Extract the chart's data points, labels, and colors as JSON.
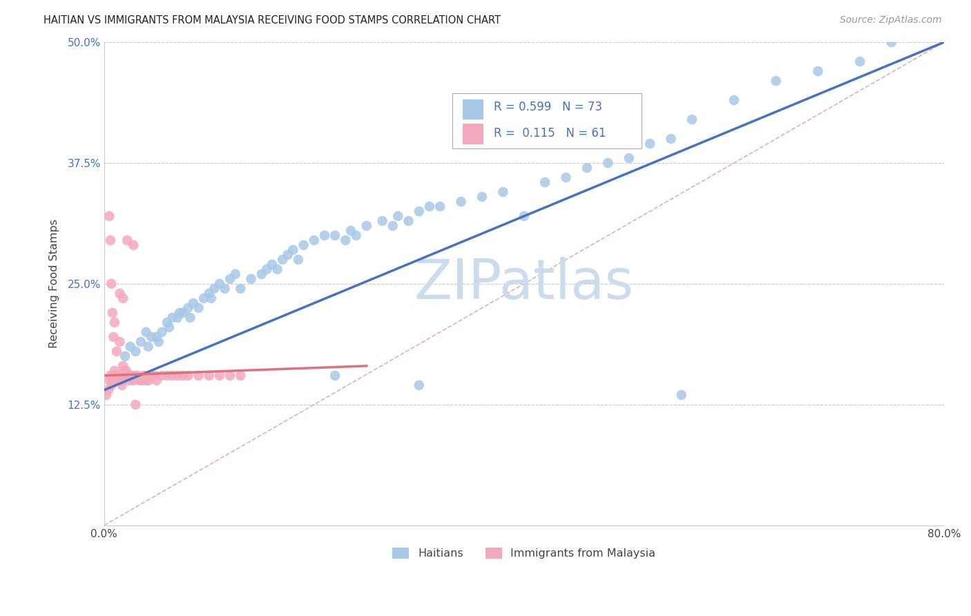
{
  "title": "HAITIAN VS IMMIGRANTS FROM MALAYSIA RECEIVING FOOD STAMPS CORRELATION CHART",
  "source": "Source: ZipAtlas.com",
  "ylabel": "Receiving Food Stamps",
  "xlim": [
    0.0,
    0.8
  ],
  "ylim": [
    0.0,
    0.5
  ],
  "r_haitian": 0.599,
  "n_haitian": 73,
  "r_malaysia": 0.115,
  "n_malaysia": 61,
  "color_haitian": "#a8c8e8",
  "color_malaysia": "#f4a8bc",
  "line_color_haitian": "#4472c4",
  "line_color_malaysia": "#e07080",
  "ref_line_color": "#e0a0a8",
  "legend_text_color": "#4472c4",
  "watermark_color": "#ccdcec",
  "background_color": "#ffffff",
  "ytick_color": "#4472c4",
  "haitian_x": [
    0.02,
    0.025,
    0.03,
    0.035,
    0.04,
    0.042,
    0.045,
    0.05,
    0.052,
    0.055,
    0.06,
    0.062,
    0.065,
    0.07,
    0.072,
    0.075,
    0.08,
    0.082,
    0.085,
    0.09,
    0.095,
    0.1,
    0.102,
    0.105,
    0.11,
    0.115,
    0.12,
    0.125,
    0.13,
    0.14,
    0.15,
    0.155,
    0.16,
    0.165,
    0.17,
    0.175,
    0.18,
    0.185,
    0.19,
    0.2,
    0.21,
    0.22,
    0.23,
    0.235,
    0.24,
    0.25,
    0.265,
    0.275,
    0.28,
    0.29,
    0.3,
    0.31,
    0.32,
    0.34,
    0.36,
    0.38,
    0.4,
    0.42,
    0.44,
    0.46,
    0.48,
    0.5,
    0.52,
    0.54,
    0.56,
    0.6,
    0.64,
    0.68,
    0.72,
    0.75,
    0.22,
    0.3,
    0.55
  ],
  "haitian_y": [
    0.175,
    0.185,
    0.18,
    0.19,
    0.2,
    0.185,
    0.195,
    0.195,
    0.19,
    0.2,
    0.21,
    0.205,
    0.215,
    0.215,
    0.22,
    0.22,
    0.225,
    0.215,
    0.23,
    0.225,
    0.235,
    0.24,
    0.235,
    0.245,
    0.25,
    0.245,
    0.255,
    0.26,
    0.245,
    0.255,
    0.26,
    0.265,
    0.27,
    0.265,
    0.275,
    0.28,
    0.285,
    0.275,
    0.29,
    0.295,
    0.3,
    0.3,
    0.295,
    0.305,
    0.3,
    0.31,
    0.315,
    0.31,
    0.32,
    0.315,
    0.325,
    0.33,
    0.33,
    0.335,
    0.34,
    0.345,
    0.32,
    0.355,
    0.36,
    0.37,
    0.375,
    0.38,
    0.395,
    0.4,
    0.42,
    0.44,
    0.46,
    0.47,
    0.48,
    0.5,
    0.155,
    0.145,
    0.135
  ],
  "malaysia_x": [
    0.002,
    0.004,
    0.005,
    0.006,
    0.007,
    0.008,
    0.009,
    0.01,
    0.011,
    0.012,
    0.013,
    0.014,
    0.015,
    0.016,
    0.017,
    0.018,
    0.019,
    0.02,
    0.021,
    0.022,
    0.023,
    0.024,
    0.025,
    0.026,
    0.028,
    0.03,
    0.032,
    0.034,
    0.036,
    0.038,
    0.04,
    0.042,
    0.045,
    0.048,
    0.05,
    0.055,
    0.06,
    0.065,
    0.07,
    0.075,
    0.08,
    0.09,
    0.1,
    0.11,
    0.12,
    0.13,
    0.015,
    0.018,
    0.022,
    0.028,
    0.005,
    0.006,
    0.007,
    0.008,
    0.009,
    0.01,
    0.012,
    0.015,
    0.018,
    0.025,
    0.03
  ],
  "malaysia_y": [
    0.135,
    0.14,
    0.15,
    0.155,
    0.145,
    0.15,
    0.155,
    0.16,
    0.155,
    0.155,
    0.155,
    0.15,
    0.15,
    0.155,
    0.145,
    0.15,
    0.16,
    0.155,
    0.16,
    0.155,
    0.155,
    0.15,
    0.155,
    0.155,
    0.15,
    0.155,
    0.155,
    0.15,
    0.15,
    0.155,
    0.15,
    0.15,
    0.155,
    0.155,
    0.15,
    0.155,
    0.155,
    0.155,
    0.155,
    0.155,
    0.155,
    0.155,
    0.155,
    0.155,
    0.155,
    0.155,
    0.24,
    0.235,
    0.295,
    0.29,
    0.32,
    0.295,
    0.25,
    0.22,
    0.195,
    0.21,
    0.18,
    0.19,
    0.165,
    0.155,
    0.125
  ],
  "haitian_line_x0": 0.0,
  "haitian_line_y0": 0.14,
  "haitian_line_x1": 0.8,
  "haitian_line_y1": 0.5,
  "malaysia_line_x0": 0.0,
  "malaysia_line_y0": 0.155,
  "malaysia_line_x1": 0.25,
  "malaysia_line_y1": 0.165
}
